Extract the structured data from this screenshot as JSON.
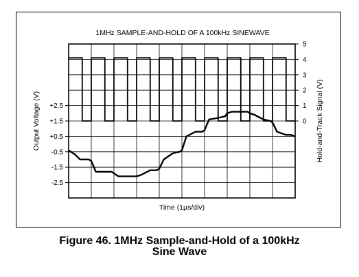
{
  "chart_data": {
    "type": "line",
    "title": "1MHz SAMPLE-AND-HOLD OF A 100kHz SINEWAVE",
    "xlabel": "Time (1µs/div)",
    "ylabel_left": "Output Voltage (V)",
    "ylabel_right": "Hold-and-Track Signal (V)",
    "left_ticks": [
      "+2.5",
      "+1.5",
      "+0.5",
      "-0.5",
      "-1.5",
      "-2.5"
    ],
    "right_ticks": [
      "5",
      "4",
      "3",
      "2",
      "1",
      "0"
    ],
    "grid": true,
    "x_divisions": 10,
    "series": [
      {
        "role": "hold-and-track",
        "axis": "right",
        "x": [
          0.0,
          0.6,
          0.6,
          1.0,
          1.0,
          1.6,
          1.6,
          2.0,
          2.0,
          2.6,
          2.6,
          3.0,
          3.0,
          3.6,
          3.6,
          4.0,
          4.0,
          4.6,
          4.6,
          5.0,
          5.0,
          5.6,
          5.6,
          6.0,
          6.0,
          6.6,
          6.6,
          7.0,
          7.0,
          7.6,
          7.6,
          8.0,
          8.0,
          8.6,
          8.6,
          9.0,
          9.0,
          9.6,
          9.6,
          10.0
        ],
        "y": [
          4.1,
          4.1,
          0,
          0,
          4.1,
          4.1,
          0,
          0,
          4.1,
          4.1,
          0,
          0,
          4.1,
          4.1,
          0,
          0,
          4.1,
          4.1,
          0,
          0,
          4.1,
          4.1,
          0,
          0,
          4.1,
          4.1,
          0,
          0,
          4.1,
          4.1,
          0,
          0,
          4.1,
          4.1,
          0,
          0,
          4.1,
          4.1,
          0,
          0
        ]
      },
      {
        "role": "output",
        "axis": "left",
        "x": [
          0.0,
          0.3,
          0.5,
          0.6,
          0.9,
          1.0,
          1.2,
          1.6,
          1.9,
          2.0,
          2.2,
          2.6,
          2.9,
          3.0,
          3.2,
          3.6,
          3.9,
          4.0,
          4.2,
          4.6,
          4.9,
          5.0,
          5.2,
          5.6,
          5.9,
          6.0,
          6.2,
          6.6,
          6.9,
          7.0,
          7.2,
          7.6,
          7.9,
          8.0,
          8.2,
          8.6,
          8.9,
          9.0,
          9.2,
          9.6,
          9.8,
          10.0
        ],
        "y": [
          -0.4,
          -0.7,
          -1.0,
          -1.0,
          -1.0,
          -1.1,
          -1.8,
          -1.8,
          -1.8,
          -1.9,
          -2.1,
          -2.1,
          -2.1,
          -2.1,
          -2.0,
          -1.7,
          -1.7,
          -1.6,
          -1.0,
          -0.6,
          -0.5,
          -0.4,
          0.5,
          0.8,
          0.8,
          0.9,
          1.6,
          1.7,
          1.8,
          2.0,
          2.1,
          2.1,
          2.1,
          2.0,
          1.9,
          1.6,
          1.5,
          1.4,
          0.8,
          0.6,
          0.6,
          0.5
        ]
      }
    ]
  },
  "caption": {
    "line1": "Figure 46. 1MHz Sample-and-Hold of a 100kHz",
    "line2": "Sine Wave"
  }
}
